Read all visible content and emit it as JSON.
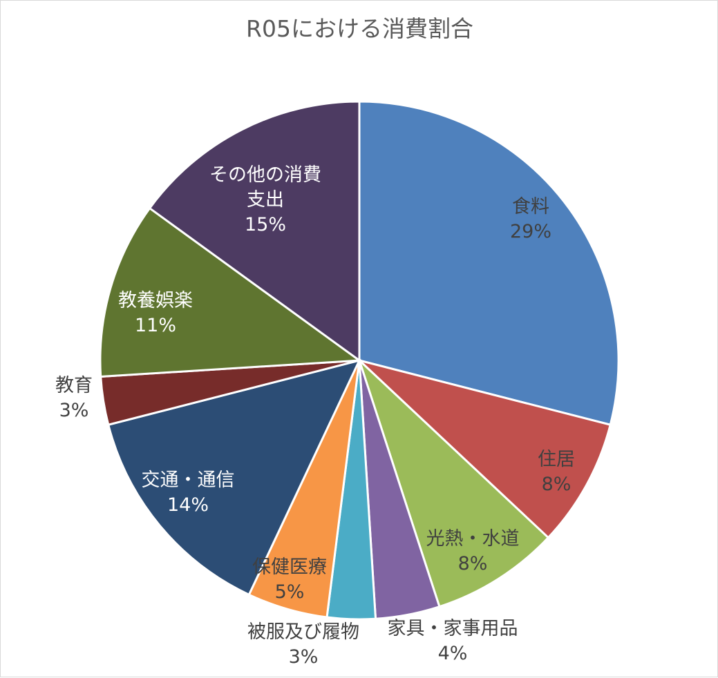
{
  "chart_data": {
    "type": "pie",
    "title": "R05における消費割合",
    "start": "12 o'clock, clockwise",
    "categories": [
      "食料",
      "住居",
      "光熱・水道",
      "家具・家事用品",
      "被服及び履物",
      "保健医療",
      "交通・通信",
      "教育",
      "教養娯楽",
      "その他の消費支出"
    ],
    "values": [
      29,
      8,
      8,
      4,
      3,
      5,
      14,
      3,
      11,
      15
    ],
    "labels": [
      "29%",
      "8%",
      "8%",
      "4%",
      "3%",
      "5%",
      "14%",
      "3%",
      "11%",
      "15%"
    ],
    "colors": [
      "#4f81bd",
      "#c0504d",
      "#9bbb59",
      "#8064a2",
      "#4bacc6",
      "#f79646",
      "#2c4d75",
      "#772c2a",
      "#5f7530",
      "#4d3b62"
    ],
    "label_colors": [
      "#404040",
      "#404040",
      "#404040",
      "#404040",
      "#404040",
      "#404040",
      "#ffffff",
      "#404040",
      "#ffffff",
      "#ffffff"
    ],
    "label_lines": [
      [
        "食料"
      ],
      [
        "住居"
      ],
      [
        "光熱・水道"
      ],
      [
        "家具・家事用品"
      ],
      [
        "被服及び履物"
      ],
      [
        "保健医療"
      ],
      [
        "交通・通信"
      ],
      [
        "教育"
      ],
      [
        "教養娯楽"
      ],
      [
        "その他の消費",
        "支出"
      ]
    ]
  }
}
